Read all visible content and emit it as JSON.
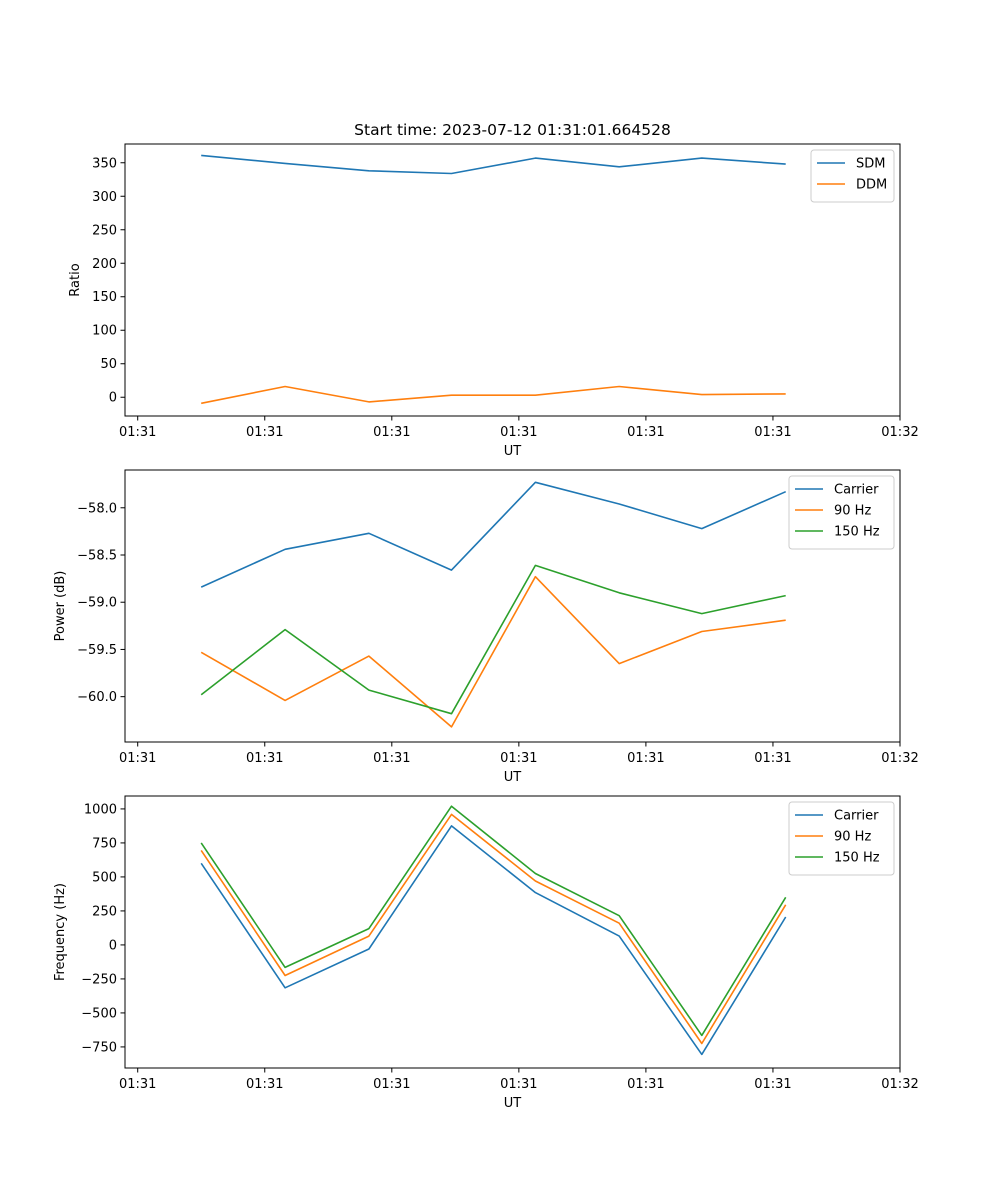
{
  "chart_data": [
    {
      "type": "line",
      "title": "Start time: 2023-07-12 01:31:01.664528",
      "xlabel": "UT",
      "ylabel": "Ratio",
      "xlim": [
        -0.6,
        5.5
      ],
      "ylim": [
        -28,
        378
      ],
      "x": [
        0,
        0.66,
        1.32,
        1.97,
        2.63,
        3.29,
        3.94,
        4.6
      ],
      "xticks": [
        {
          "v": -0.5,
          "label": "01:31"
        },
        {
          "v": 0.5,
          "label": "01:31"
        },
        {
          "v": 1.5,
          "label": "01:31"
        },
        {
          "v": 2.5,
          "label": "01:31"
        },
        {
          "v": 3.5,
          "label": "01:31"
        },
        {
          "v": 4.5,
          "label": "01:31"
        },
        {
          "v": 5.5,
          "label": "01:32"
        }
      ],
      "yticks": [
        0,
        50,
        100,
        150,
        200,
        250,
        300,
        350
      ],
      "legend_position": "upper right",
      "series": [
        {
          "name": "SDM",
          "color": "#1f77b4",
          "values": [
            361,
            349,
            338,
            334,
            357,
            344,
            357,
            348
          ]
        },
        {
          "name": "DDM",
          "color": "#ff7f0e",
          "values": [
            -9,
            16,
            -7,
            3,
            3,
            16,
            4,
            5
          ]
        }
      ]
    },
    {
      "type": "line",
      "title": "",
      "xlabel": "UT",
      "ylabel": "Power (dB)",
      "xlim": [
        -0.6,
        5.5
      ],
      "ylim": [
        -60.48,
        -57.6
      ],
      "x": [
        0,
        0.66,
        1.32,
        1.97,
        2.63,
        3.29,
        3.94,
        4.6
      ],
      "xticks": [
        {
          "v": -0.5,
          "label": "01:31"
        },
        {
          "v": 0.5,
          "label": "01:31"
        },
        {
          "v": 1.5,
          "label": "01:31"
        },
        {
          "v": 2.5,
          "label": "01:31"
        },
        {
          "v": 3.5,
          "label": "01:31"
        },
        {
          "v": 4.5,
          "label": "01:31"
        },
        {
          "v": 5.5,
          "label": "01:32"
        }
      ],
      "yticks": [
        -60.0,
        -59.5,
        -59.0,
        -58.5,
        -58.0
      ],
      "ytick_labels": [
        "−60.0",
        "−59.5",
        "−59.0",
        "−58.5",
        "−58.0"
      ],
      "legend_position": "upper right",
      "series": [
        {
          "name": "Carrier",
          "color": "#1f77b4",
          "values": [
            -58.84,
            -58.44,
            -58.27,
            -58.66,
            -57.73,
            -57.96,
            -58.22,
            -57.83
          ]
        },
        {
          "name": "90 Hz",
          "color": "#ff7f0e",
          "values": [
            -59.53,
            -60.04,
            -59.57,
            -60.32,
            -58.73,
            -59.65,
            -59.31,
            -59.19
          ]
        },
        {
          "name": "150 Hz",
          "color": "#2ca02c",
          "values": [
            -59.98,
            -59.29,
            -59.93,
            -60.18,
            -58.61,
            -58.9,
            -59.12,
            -58.93
          ]
        }
      ]
    },
    {
      "type": "line",
      "title": "",
      "xlabel": "UT",
      "ylabel": "Frequency (Hz)",
      "xlim": [
        -0.6,
        5.5
      ],
      "ylim": [
        -905,
        1095
      ],
      "x": [
        0,
        0.66,
        1.32,
        1.97,
        2.63,
        3.29,
        3.94,
        4.6
      ],
      "xticks": [
        {
          "v": -0.5,
          "label": "01:31"
        },
        {
          "v": 0.5,
          "label": "01:31"
        },
        {
          "v": 1.5,
          "label": "01:31"
        },
        {
          "v": 2.5,
          "label": "01:31"
        },
        {
          "v": 3.5,
          "label": "01:31"
        },
        {
          "v": 4.5,
          "label": "01:31"
        },
        {
          "v": 5.5,
          "label": "01:32"
        }
      ],
      "yticks": [
        -750,
        -500,
        -250,
        0,
        250,
        500,
        750,
        1000
      ],
      "ytick_labels": [
        "−750",
        "−500",
        "−250",
        "0",
        "250",
        "500",
        "750",
        "1000"
      ],
      "legend_position": "upper right",
      "series": [
        {
          "name": "Carrier",
          "color": "#1f77b4",
          "values": [
            600,
            -315,
            -30,
            875,
            385,
            65,
            -805,
            205
          ]
        },
        {
          "name": "90 Hz",
          "color": "#ff7f0e",
          "values": [
            695,
            -225,
            65,
            960,
            470,
            160,
            -725,
            295
          ]
        },
        {
          "name": "150 Hz",
          "color": "#2ca02c",
          "values": [
            750,
            -165,
            120,
            1020,
            525,
            215,
            -665,
            350
          ]
        }
      ]
    }
  ]
}
